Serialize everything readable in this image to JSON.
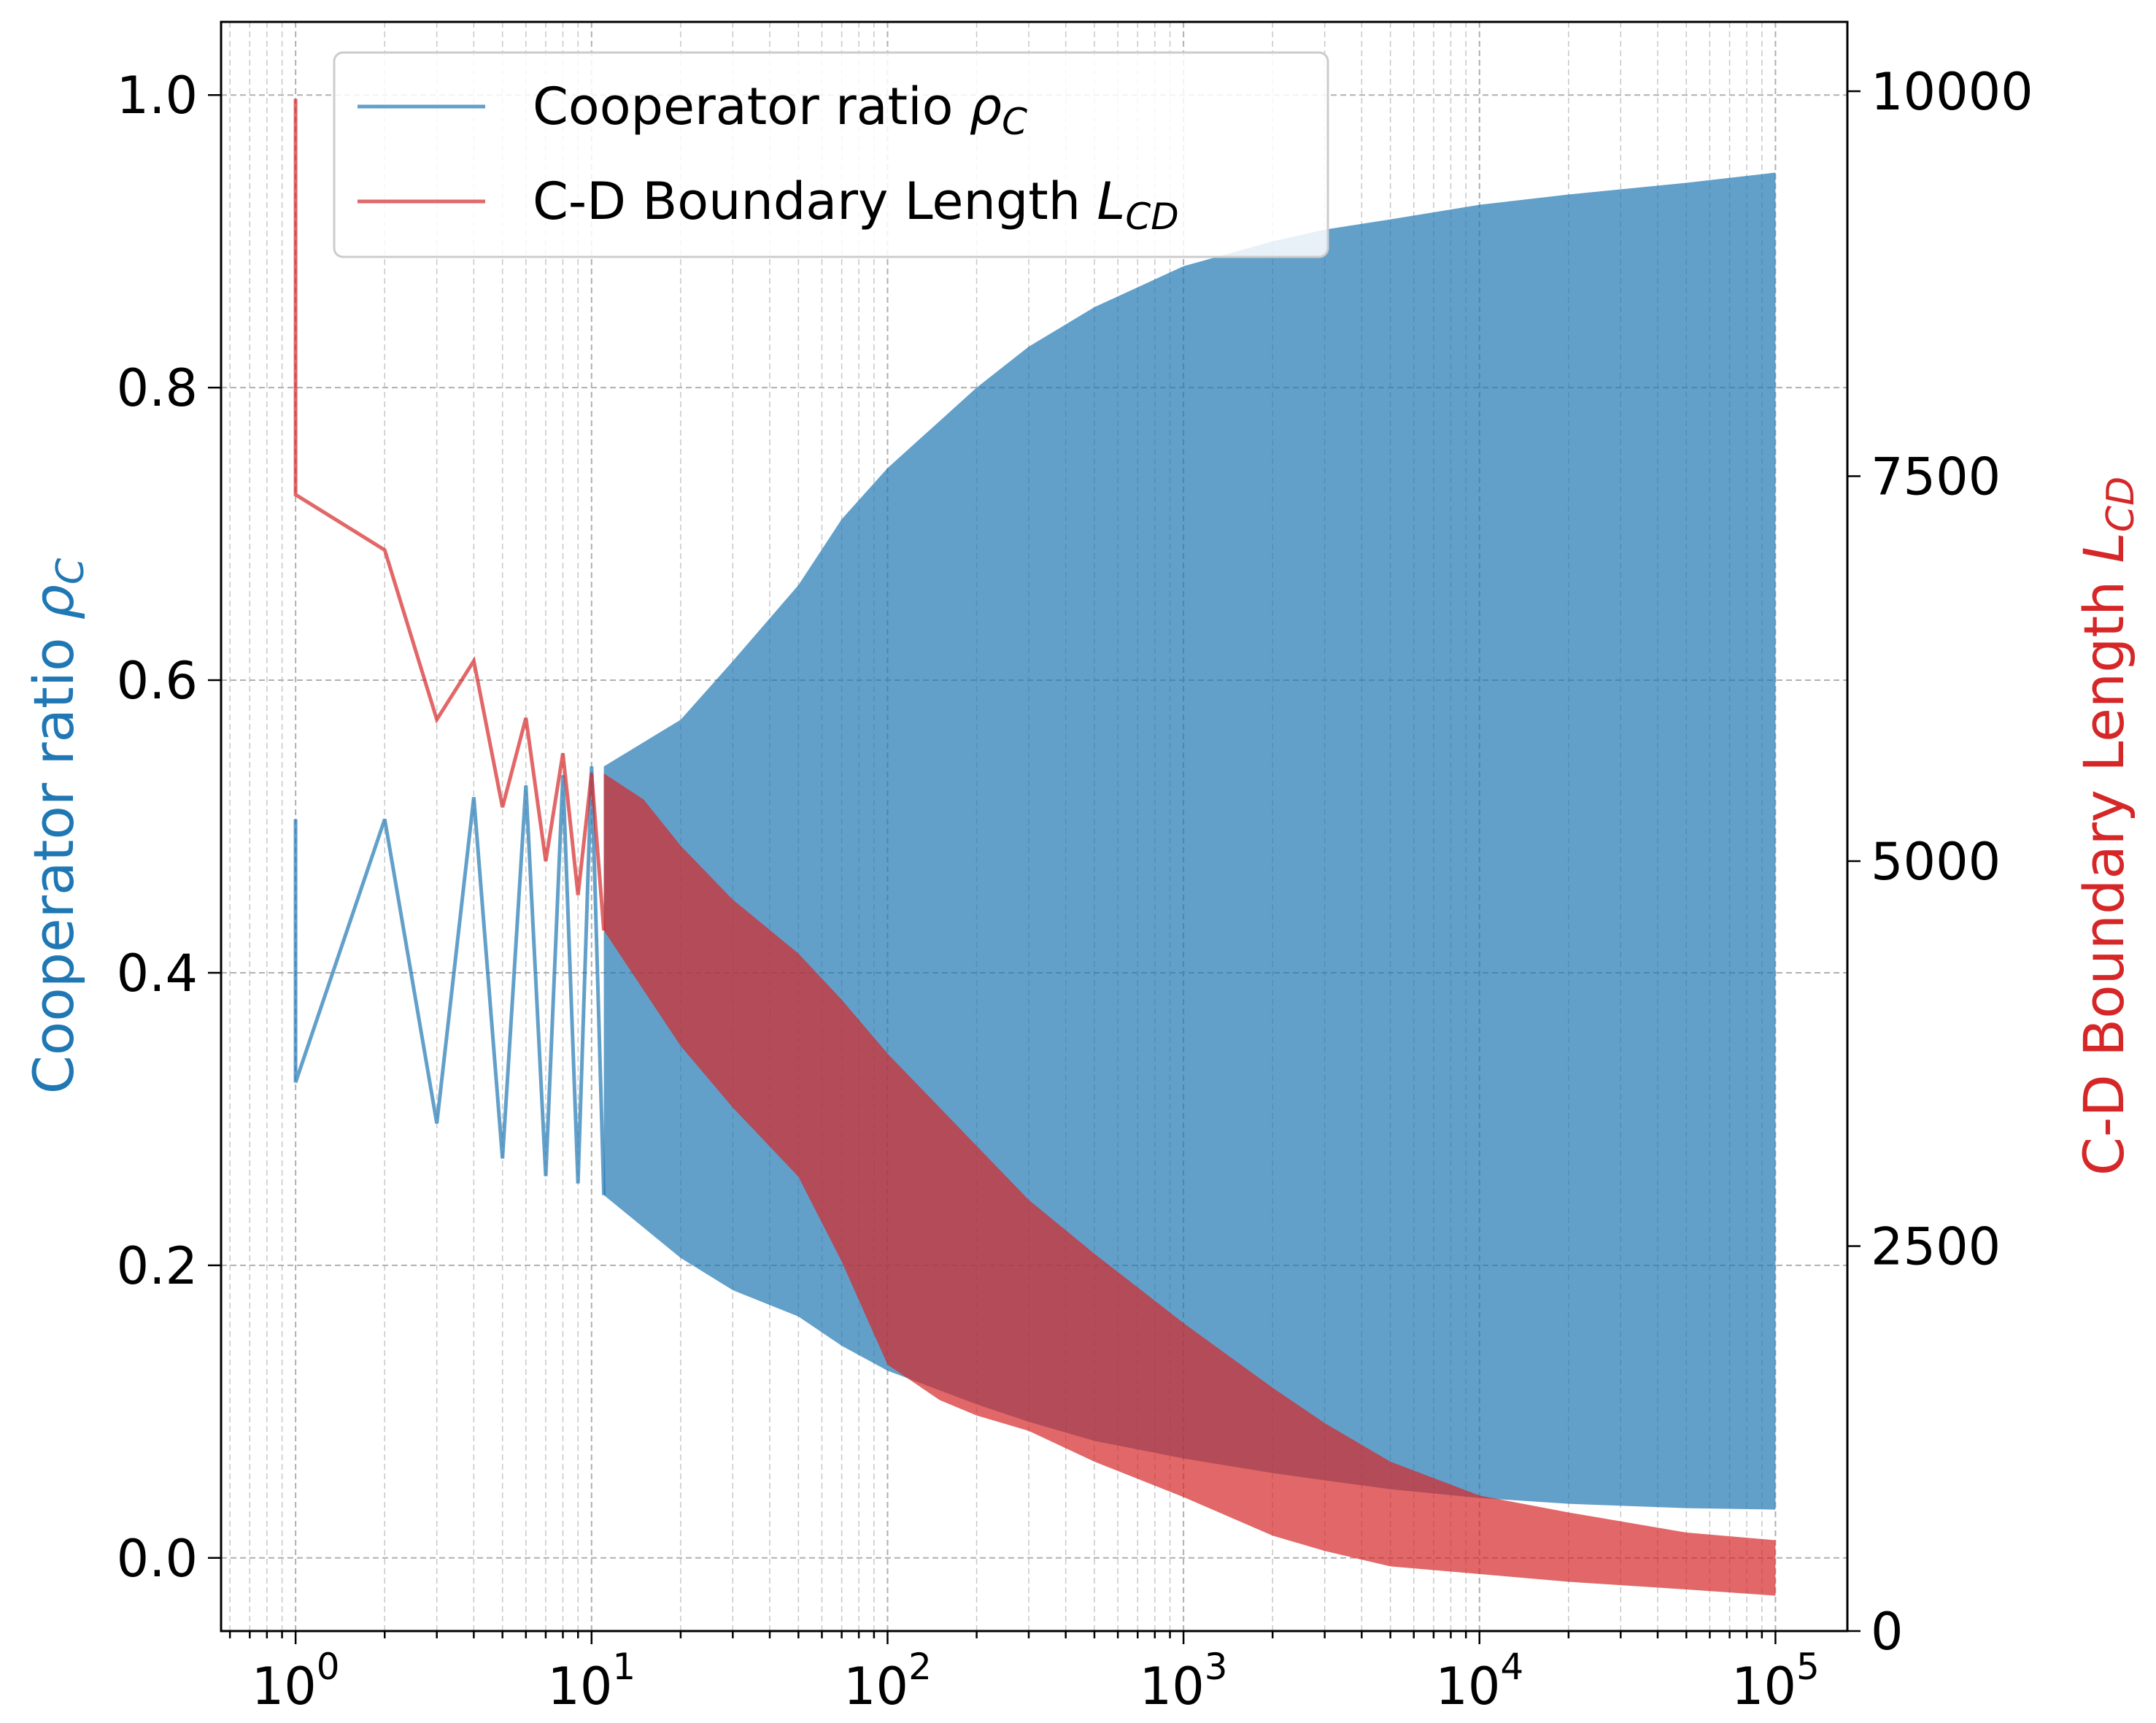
{
  "chart_data": {
    "type": "line",
    "xscale": "log",
    "xlim": [
      0.56,
      175000
    ],
    "x_ticks": [
      {
        "value": 1,
        "base": "10",
        "exp": "0"
      },
      {
        "value": 10,
        "base": "10",
        "exp": "1"
      },
      {
        "value": 100,
        "base": "10",
        "exp": "2"
      },
      {
        "value": 1000,
        "base": "10",
        "exp": "3"
      },
      {
        "value": 10000,
        "base": "10",
        "exp": "4"
      },
      {
        "value": 100000,
        "base": "10",
        "exp": "5"
      }
    ],
    "grid": true,
    "legend_position": "top-left",
    "left_axis": {
      "label_text": "Cooperator ratio ",
      "label_symbol": "ρ",
      "label_sub": "C",
      "color": "#1f77b4",
      "ylim": [
        -0.05,
        1.05
      ],
      "ticks": [
        "0.0",
        "0.2",
        "0.4",
        "0.6",
        "0.8",
        "1.0"
      ]
    },
    "right_axis": {
      "label_text": "C-D Boundary Length ",
      "label_symbol": "L",
      "label_sub": "CD",
      "color": "#d62728",
      "ylim": [
        0,
        10450
      ],
      "ticks": [
        "0",
        "2500",
        "5000",
        "7500",
        "10000"
      ]
    },
    "series": [
      {
        "name_text": "Cooperator ratio ",
        "name_symbol": "ρ",
        "name_sub": "C",
        "axis": "left",
        "color": "#1f77b4",
        "start_points": [
          [
            1,
            0.505
          ],
          [
            1,
            0.325
          ],
          [
            2,
            0.505
          ],
          [
            3,
            0.297
          ],
          [
            4,
            0.52
          ],
          [
            5,
            0.273
          ],
          [
            6,
            0.528
          ],
          [
            7,
            0.261
          ],
          [
            8,
            0.535
          ],
          [
            9,
            0.256
          ],
          [
            10,
            0.541
          ],
          [
            11,
            0.248
          ]
        ],
        "upper_envelope": [
          [
            11,
            0.541
          ],
          [
            20,
            0.573
          ],
          [
            30,
            0.613
          ],
          [
            50,
            0.665
          ],
          [
            70,
            0.71
          ],
          [
            100,
            0.745
          ],
          [
            200,
            0.8
          ],
          [
            300,
            0.828
          ],
          [
            500,
            0.855
          ],
          [
            1000,
            0.883
          ],
          [
            2000,
            0.9
          ],
          [
            3000,
            0.908
          ],
          [
            5000,
            0.915
          ],
          [
            10000,
            0.925
          ],
          [
            20000,
            0.932
          ],
          [
            50000,
            0.94
          ],
          [
            100000,
            0.947
          ]
        ],
        "lower_envelope": [
          [
            11,
            0.248
          ],
          [
            20,
            0.205
          ],
          [
            30,
            0.183
          ],
          [
            50,
            0.165
          ],
          [
            70,
            0.145
          ],
          [
            100,
            0.128
          ],
          [
            200,
            0.105
          ],
          [
            300,
            0.093
          ],
          [
            500,
            0.08
          ],
          [
            1000,
            0.068
          ],
          [
            2000,
            0.058
          ],
          [
            3000,
            0.053
          ],
          [
            5000,
            0.047
          ],
          [
            10000,
            0.041
          ],
          [
            20000,
            0.037
          ],
          [
            50000,
            0.034
          ],
          [
            100000,
            0.033
          ]
        ]
      },
      {
        "name_text": "C-D Boundary Length ",
        "name_symbol": "L",
        "name_sub": "CD",
        "axis": "right",
        "color": "#d62728",
        "start_points": [
          [
            1,
            9950
          ],
          [
            1,
            7380
          ],
          [
            2,
            7020
          ],
          [
            3,
            5920
          ],
          [
            4,
            6300
          ],
          [
            5,
            5350
          ],
          [
            6,
            5930
          ],
          [
            7,
            5000
          ],
          [
            8,
            5700
          ],
          [
            9,
            4780
          ],
          [
            10,
            5570
          ],
          [
            11,
            4550
          ]
        ],
        "upper_envelope": [
          [
            11,
            5570
          ],
          [
            15,
            5400
          ],
          [
            20,
            5100
          ],
          [
            30,
            4750
          ],
          [
            50,
            4400
          ],
          [
            70,
            4100
          ],
          [
            100,
            3750
          ],
          [
            200,
            3150
          ],
          [
            300,
            2800
          ],
          [
            500,
            2450
          ],
          [
            1000,
            2000
          ],
          [
            2000,
            1580
          ],
          [
            3000,
            1350
          ],
          [
            5000,
            1100
          ],
          [
            10000,
            880
          ],
          [
            20000,
            770
          ],
          [
            50000,
            640
          ],
          [
            100000,
            590
          ]
        ],
        "lower_envelope": [
          [
            11,
            4550
          ],
          [
            20,
            3800
          ],
          [
            30,
            3400
          ],
          [
            50,
            2950
          ],
          [
            70,
            2400
          ],
          [
            100,
            1730
          ],
          [
            150,
            1500
          ],
          [
            200,
            1400
          ],
          [
            300,
            1300
          ],
          [
            500,
            1100
          ],
          [
            1000,
            870
          ],
          [
            2000,
            620
          ],
          [
            3000,
            520
          ],
          [
            5000,
            420
          ],
          [
            10000,
            370
          ],
          [
            20000,
            320
          ],
          [
            50000,
            270
          ],
          [
            100000,
            230
          ]
        ]
      }
    ]
  }
}
